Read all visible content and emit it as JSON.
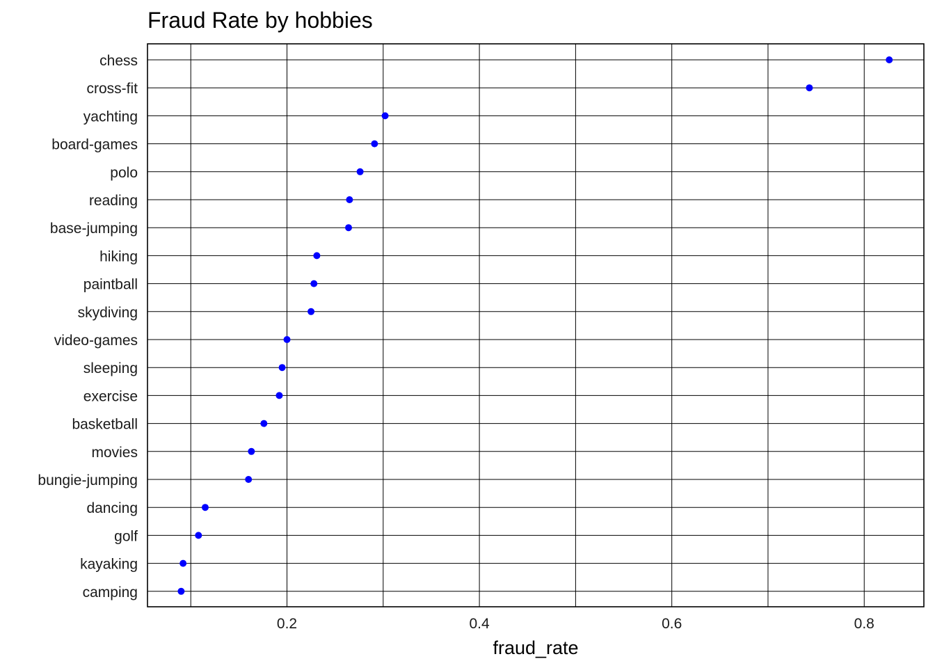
{
  "chart_data": {
    "type": "scatter",
    "title": "Fraud Rate by hobbies",
    "xlabel": "fraud_rate",
    "ylabel": "",
    "xlim": [
      0.055,
      0.862
    ],
    "x_ticks": [
      0.2,
      0.4,
      0.6,
      0.8
    ],
    "x_tick_labels": [
      "0.2",
      "0.4",
      "0.6",
      "0.8"
    ],
    "grid": true,
    "point_color": "#0000ff",
    "categories": [
      "chess",
      "cross-fit",
      "yachting",
      "board-games",
      "polo",
      "reading",
      "base-jumping",
      "hiking",
      "paintball",
      "skydiving",
      "video-games",
      "sleeping",
      "exercise",
      "basketball",
      "movies",
      "bungie-jumping",
      "dancing",
      "golf",
      "kayaking",
      "camping"
    ],
    "values": [
      0.826,
      0.743,
      0.302,
      0.291,
      0.276,
      0.265,
      0.264,
      0.231,
      0.228,
      0.225,
      0.2,
      0.195,
      0.192,
      0.176,
      0.163,
      0.16,
      0.115,
      0.108,
      0.092,
      0.09
    ]
  }
}
